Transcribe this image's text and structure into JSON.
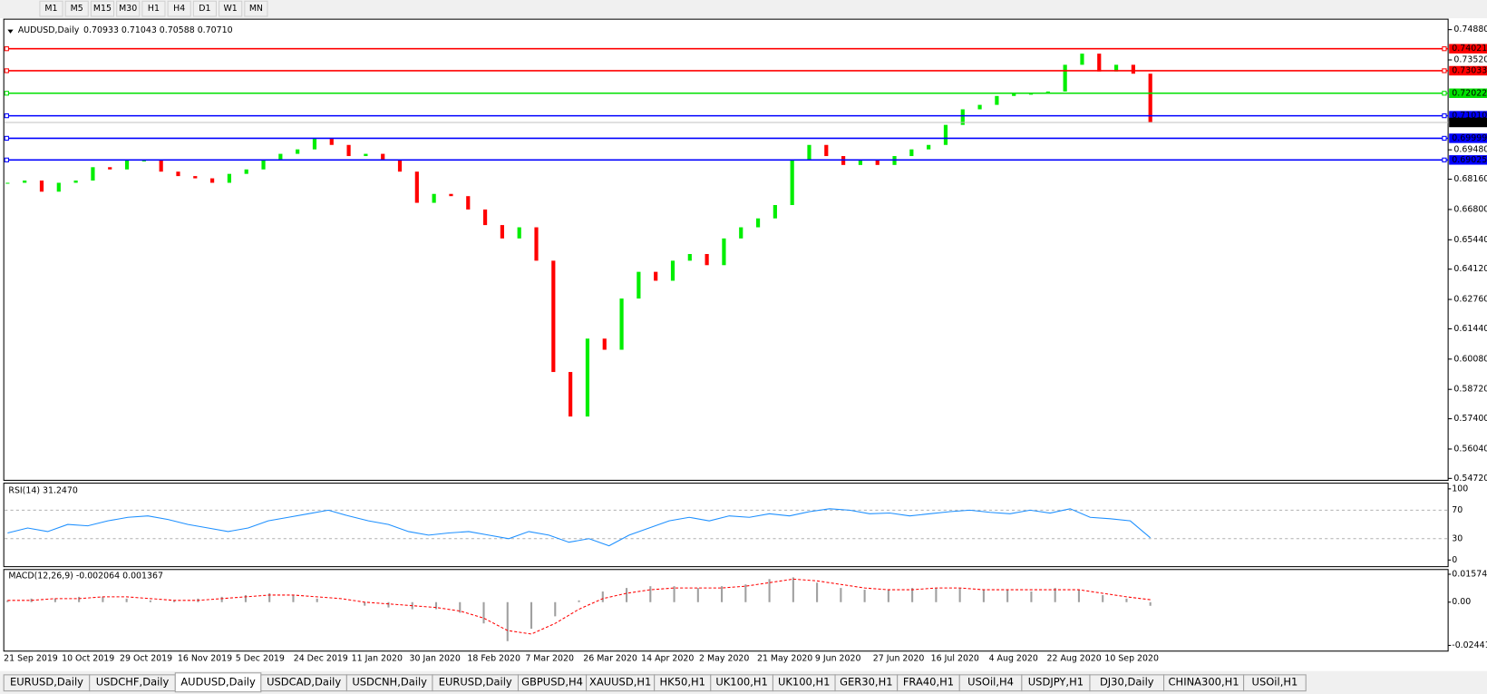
{
  "toolbar": [
    "M1",
    "M5",
    "M15",
    "M30",
    "H1",
    "H4",
    "D1",
    "W1",
    "MN"
  ],
  "main": {
    "symbol": "AUDUSD,Daily",
    "ohlc": "0.70933 0.71043 0.70588 0.70710",
    "ylim": [
      0.5472,
      0.7488
    ],
    "yticks": [
      {
        "value": 0.7488,
        "label": "0.74880"
      },
      {
        "value": 0.7352,
        "label": "0.73520"
      },
      {
        "value": 0.6948,
        "label": "0.69480"
      },
      {
        "value": 0.6816,
        "label": "0.68160"
      },
      {
        "value": 0.668,
        "label": "0.66800"
      },
      {
        "value": 0.6544,
        "label": "0.65440"
      },
      {
        "value": 0.6412,
        "label": "0.64120"
      },
      {
        "value": 0.6276,
        "label": "0.62760"
      },
      {
        "value": 0.6144,
        "label": "0.61440"
      },
      {
        "value": 0.6008,
        "label": "0.60080"
      },
      {
        "value": 0.5872,
        "label": "0.58720"
      },
      {
        "value": 0.574,
        "label": "0.57400"
      },
      {
        "value": 0.5604,
        "label": "0.56040"
      },
      {
        "value": 0.5472,
        "label": "0.54720"
      }
    ],
    "current_price": {
      "value": 0.7071,
      "label": "0.70710"
    },
    "levels": [
      {
        "value": 0.74021,
        "label": "0.74021",
        "color": "#ff0000"
      },
      {
        "value": 0.73033,
        "label": "0.73033",
        "color": "#ff0000"
      },
      {
        "value": 0.72022,
        "label": "0.72022",
        "color": "#00e000"
      },
      {
        "value": 0.7101,
        "label": "0.71010",
        "color": "#0000ff"
      },
      {
        "value": 0.69999,
        "label": "0.69999",
        "color": "#0000ff"
      },
      {
        "value": 0.69025,
        "label": "0.69025",
        "color": "#0000ff"
      }
    ],
    "up_color": "#00ee00",
    "down_color": "#ff0000",
    "closes": [
      0.68,
      0.681,
      0.676,
      0.68,
      0.681,
      0.687,
      0.686,
      0.69,
      0.69,
      0.685,
      0.683,
      0.682,
      0.68,
      0.684,
      0.686,
      0.69,
      0.693,
      0.695,
      0.7,
      0.697,
      0.692,
      0.693,
      0.69,
      0.685,
      0.671,
      0.675,
      0.674,
      0.668,
      0.661,
      0.655,
      0.66,
      0.645,
      0.595,
      0.575,
      0.61,
      0.605,
      0.628,
      0.64,
      0.636,
      0.645,
      0.648,
      0.643,
      0.655,
      0.66,
      0.664,
      0.67,
      0.69,
      0.697,
      0.692,
      0.688,
      0.69,
      0.688,
      0.692,
      0.695,
      0.697,
      0.706,
      0.713,
      0.715,
      0.719,
      0.72,
      0.72,
      0.721,
      0.733,
      0.738,
      0.73,
      0.733,
      0.729,
      0.7071
    ]
  },
  "rsi": {
    "label": "RSI(14) 31.2470",
    "color": "#1e90ff",
    "ylim": [
      0,
      100
    ],
    "yticks": [
      100,
      70,
      30,
      0
    ],
    "values": [
      38,
      45,
      40,
      50,
      48,
      55,
      60,
      62,
      57,
      50,
      45,
      40,
      45,
      55,
      60,
      65,
      70,
      62,
      55,
      50,
      40,
      35,
      38,
      40,
      35,
      30,
      40,
      35,
      25,
      30,
      20,
      35,
      45,
      55,
      60,
      55,
      62,
      60,
      65,
      62,
      68,
      72,
      70,
      65,
      66,
      62,
      65,
      68,
      70,
      67,
      65,
      70,
      66,
      72,
      60,
      58,
      55,
      31.247
    ]
  },
  "macd": {
    "label": "MACD(12,26,9) -0.002064 0.001367",
    "ylim": [
      -0.024412,
      0.015741
    ],
    "yticks": [
      0.015741,
      {
        "value": 0,
        "label": "0.00"
      },
      -0.024412
    ],
    "hist_color": "#a0a0a0",
    "signal_color": "#ff0000",
    "main": [
      0.001,
      0.002,
      0.002,
      0.003,
      0.003,
      0.002,
      0.001,
      0.001,
      0.002,
      0.003,
      0.004,
      0.005,
      0.004,
      0.002,
      0.0,
      -0.002,
      -0.003,
      -0.004,
      -0.004,
      -0.006,
      -0.012,
      -0.022,
      -0.015,
      -0.008,
      0.001,
      0.006,
      0.008,
      0.009,
      0.009,
      0.008,
      0.009,
      0.01,
      0.013,
      0.014,
      0.011,
      0.008,
      0.007,
      0.007,
      0.008,
      0.008,
      0.008,
      0.007,
      0.007,
      0.006,
      0.008,
      0.007,
      0.004,
      0.002,
      -0.002064
    ],
    "signal": [
      0.001,
      0.001,
      0.002,
      0.002,
      0.003,
      0.003,
      0.002,
      0.001,
      0.001,
      0.002,
      0.003,
      0.004,
      0.004,
      0.003,
      0.002,
      0.0,
      -0.001,
      -0.002,
      -0.003,
      -0.005,
      -0.009,
      -0.016,
      -0.018,
      -0.012,
      -0.004,
      0.002,
      0.005,
      0.007,
      0.008,
      0.008,
      0.008,
      0.009,
      0.011,
      0.013,
      0.012,
      0.01,
      0.008,
      0.007,
      0.007,
      0.008,
      0.008,
      0.007,
      0.007,
      0.007,
      0.007,
      0.007,
      0.005,
      0.003,
      0.001367
    ]
  },
  "dates": [
    "21 Sep 2019",
    "10 Oct 2019",
    "29 Oct 2019",
    "16 Nov 2019",
    "5 Dec 2019",
    "24 Dec 2019",
    "11 Jan 2020",
    "30 Jan 2020",
    "18 Feb 2020",
    "7 Mar 2020",
    "26 Mar 2020",
    "14 Apr 2020",
    "2 May 2020",
    "21 May 2020",
    "9 Jun 2020",
    "27 Jun 2020",
    "16 Jul 2020",
    "4 Aug 2020",
    "22 Aug 2020",
    "10 Sep 2020"
  ],
  "tabs": [
    "EURUSD,Daily",
    "USDCHF,Daily",
    "AUDUSD,Daily",
    "USDCAD,Daily",
    "USDCNH,Daily",
    "EURUSD,Daily",
    "GBPUSD,H4",
    "XAUUSD,H1",
    "HK50,H1",
    "UK100,H1",
    "UK100,H1",
    "GER30,H1",
    "FRA40,H1",
    "USOil,H4",
    "USDJPY,H1",
    "DJ30,Daily",
    "CHINA300,H1",
    "USOil,H1"
  ],
  "active_tab": 2
}
